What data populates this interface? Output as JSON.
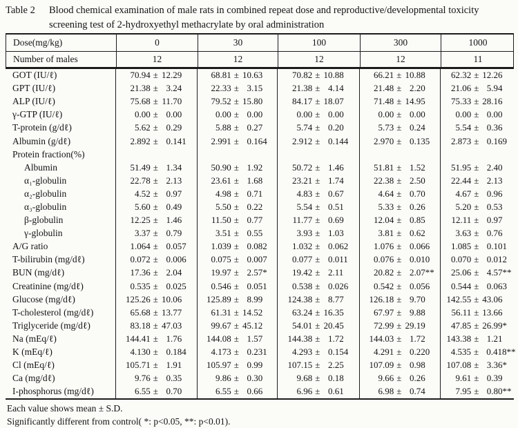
{
  "page": {
    "title_label": "Table 2",
    "caption_lines": [
      "Blood chemical examination of male rats in combined repeat dose and reproductive/developmental toxicity",
      "screening test of 2-hydroxyethyl methacrylate by oral administration"
    ],
    "footnotes": [
      "Each value shows mean ± S.D.",
      "Significantly different from control( *: p<0.05, **: p<0.01)."
    ]
  },
  "table": {
    "header_row_label": "Dose(mg/kg)",
    "doses": [
      "0",
      "30",
      "100",
      "300",
      "1000"
    ],
    "males_row_label": "Number of males",
    "males": [
      "12",
      "12",
      "12",
      "12",
      "11"
    ],
    "plus_minus": "±",
    "rows": [
      {
        "label": "GOT (IU/ℓ)",
        "indent": false,
        "values": [
          {
            "mean": "70.94",
            "sd": "12.29",
            "sig": ""
          },
          {
            "mean": "68.81",
            "sd": "10.63",
            "sig": ""
          },
          {
            "mean": "70.82",
            "sd": "10.88",
            "sig": ""
          },
          {
            "mean": "66.21",
            "sd": "10.88",
            "sig": ""
          },
          {
            "mean": "62.32",
            "sd": "12.26",
            "sig": ""
          }
        ]
      },
      {
        "label": "GPT (IU/ℓ)",
        "indent": false,
        "values": [
          {
            "mean": "21.38",
            "sd": "3.24",
            "sig": ""
          },
          {
            "mean": "22.33",
            "sd": "3.15",
            "sig": ""
          },
          {
            "mean": "21.38",
            "sd": "4.14",
            "sig": ""
          },
          {
            "mean": "21.48",
            "sd": "2.20",
            "sig": ""
          },
          {
            "mean": "21.06",
            "sd": "5.94",
            "sig": ""
          }
        ]
      },
      {
        "label": "ALP (IU/ℓ)",
        "indent": false,
        "values": [
          {
            "mean": "75.68",
            "sd": "11.70",
            "sig": ""
          },
          {
            "mean": "79.52",
            "sd": "15.80",
            "sig": ""
          },
          {
            "mean": "84.17",
            "sd": "18.07",
            "sig": ""
          },
          {
            "mean": "71.48",
            "sd": "14.95",
            "sig": ""
          },
          {
            "mean": "75.33",
            "sd": "28.16",
            "sig": ""
          }
        ]
      },
      {
        "label": "γ-GTP (IU/ℓ)",
        "indent": false,
        "values": [
          {
            "mean": "0.00",
            "sd": "0.00",
            "sig": ""
          },
          {
            "mean": "0.00",
            "sd": "0.00",
            "sig": ""
          },
          {
            "mean": "0.00",
            "sd": "0.00",
            "sig": ""
          },
          {
            "mean": "0.00",
            "sd": "0.00",
            "sig": ""
          },
          {
            "mean": "0.00",
            "sd": "0.00",
            "sig": ""
          }
        ]
      },
      {
        "label": "T-protein (g/dℓ)",
        "indent": false,
        "values": [
          {
            "mean": "5.62",
            "sd": "0.29",
            "sig": ""
          },
          {
            "mean": "5.88",
            "sd": "0.27",
            "sig": ""
          },
          {
            "mean": "5.74",
            "sd": "0.20",
            "sig": ""
          },
          {
            "mean": "5.73",
            "sd": "0.24",
            "sig": ""
          },
          {
            "mean": "5.54",
            "sd": "0.36",
            "sig": ""
          }
        ]
      },
      {
        "label": "Albumin (g/dℓ)",
        "indent": false,
        "values": [
          {
            "mean": "2.892",
            "sd": "0.141",
            "sig": ""
          },
          {
            "mean": "2.991",
            "sd": "0.164",
            "sig": ""
          },
          {
            "mean": "2.912",
            "sd": "0.144",
            "sig": ""
          },
          {
            "mean": "2.970",
            "sd": "0.135",
            "sig": ""
          },
          {
            "mean": "2.873",
            "sd": "0.169",
            "sig": ""
          }
        ]
      },
      {
        "label": "Protein fraction(%)",
        "indent": false,
        "values": []
      },
      {
        "label": "Albumin",
        "indent": true,
        "values": [
          {
            "mean": "51.49",
            "sd": "1.34",
            "sig": ""
          },
          {
            "mean": "50.90",
            "sd": "1.92",
            "sig": ""
          },
          {
            "mean": "50.72",
            "sd": "1.46",
            "sig": ""
          },
          {
            "mean": "51.81",
            "sd": "1.52",
            "sig": ""
          },
          {
            "mean": "51.95",
            "sd": "2.40",
            "sig": ""
          }
        ]
      },
      {
        "label": "α₁-globulin",
        "indent": true,
        "values": [
          {
            "mean": "22.78",
            "sd": "2.13",
            "sig": ""
          },
          {
            "mean": "23.61",
            "sd": "1.68",
            "sig": ""
          },
          {
            "mean": "23.21",
            "sd": "1.74",
            "sig": ""
          },
          {
            "mean": "22.38",
            "sd": "2.50",
            "sig": ""
          },
          {
            "mean": "22.44",
            "sd": "2.13",
            "sig": ""
          }
        ]
      },
      {
        "label": "α₂-globulin",
        "indent": true,
        "values": [
          {
            "mean": "4.52",
            "sd": "0.97",
            "sig": ""
          },
          {
            "mean": "4.98",
            "sd": "0.71",
            "sig": ""
          },
          {
            "mean": "4.83",
            "sd": "0.67",
            "sig": ""
          },
          {
            "mean": "4.64",
            "sd": "0.70",
            "sig": ""
          },
          {
            "mean": "4.67",
            "sd": "0.96",
            "sig": ""
          }
        ]
      },
      {
        "label": "α₃-globulin",
        "indent": true,
        "values": [
          {
            "mean": "5.60",
            "sd": "0.49",
            "sig": ""
          },
          {
            "mean": "5.50",
            "sd": "0.22",
            "sig": ""
          },
          {
            "mean": "5.54",
            "sd": "0.51",
            "sig": ""
          },
          {
            "mean": "5.33",
            "sd": "0.26",
            "sig": ""
          },
          {
            "mean": "5.20",
            "sd": "0.53",
            "sig": ""
          }
        ]
      },
      {
        "label": "β-globulin",
        "indent": true,
        "values": [
          {
            "mean": "12.25",
            "sd": "1.46",
            "sig": ""
          },
          {
            "mean": "11.50",
            "sd": "0.77",
            "sig": ""
          },
          {
            "mean": "11.77",
            "sd": "0.69",
            "sig": ""
          },
          {
            "mean": "12.04",
            "sd": "0.85",
            "sig": ""
          },
          {
            "mean": "12.11",
            "sd": "0.97",
            "sig": ""
          }
        ]
      },
      {
        "label": "γ-globulin",
        "indent": true,
        "values": [
          {
            "mean": "3.37",
            "sd": "0.79",
            "sig": ""
          },
          {
            "mean": "3.51",
            "sd": "0.55",
            "sig": ""
          },
          {
            "mean": "3.93",
            "sd": "1.03",
            "sig": ""
          },
          {
            "mean": "3.81",
            "sd": "0.62",
            "sig": ""
          },
          {
            "mean": "3.63",
            "sd": "0.76",
            "sig": ""
          }
        ]
      },
      {
        "label": "A/G ratio",
        "indent": false,
        "values": [
          {
            "mean": "1.064",
            "sd": "0.057",
            "sig": ""
          },
          {
            "mean": "1.039",
            "sd": "0.082",
            "sig": ""
          },
          {
            "mean": "1.032",
            "sd": "0.062",
            "sig": ""
          },
          {
            "mean": "1.076",
            "sd": "0.066",
            "sig": ""
          },
          {
            "mean": "1.085",
            "sd": "0.101",
            "sig": ""
          }
        ]
      },
      {
        "label": "T-bilirubin (mg/dℓ)",
        "indent": false,
        "values": [
          {
            "mean": "0.072",
            "sd": "0.006",
            "sig": ""
          },
          {
            "mean": "0.075",
            "sd": "0.007",
            "sig": ""
          },
          {
            "mean": "0.077",
            "sd": "0.011",
            "sig": ""
          },
          {
            "mean": "0.076",
            "sd": "0.010",
            "sig": ""
          },
          {
            "mean": "0.070",
            "sd": "0.012",
            "sig": ""
          }
        ]
      },
      {
        "label": "BUN (mg/dℓ)",
        "indent": false,
        "values": [
          {
            "mean": "17.36",
            "sd": "2.04",
            "sig": ""
          },
          {
            "mean": "19.97",
            "sd": "2.57",
            "sig": "*"
          },
          {
            "mean": "19.42",
            "sd": "2.11",
            "sig": ""
          },
          {
            "mean": "20.82",
            "sd": "2.07",
            "sig": "**"
          },
          {
            "mean": "25.06",
            "sd": "4.57",
            "sig": "**"
          }
        ]
      },
      {
        "label": "Creatinine (mg/dℓ)",
        "indent": false,
        "values": [
          {
            "mean": "0.535",
            "sd": "0.025",
            "sig": ""
          },
          {
            "mean": "0.546",
            "sd": "0.051",
            "sig": ""
          },
          {
            "mean": "0.538",
            "sd": "0.026",
            "sig": ""
          },
          {
            "mean": "0.542",
            "sd": "0.056",
            "sig": ""
          },
          {
            "mean": "0.544",
            "sd": "0.063",
            "sig": ""
          }
        ]
      },
      {
        "label": "Glucose (mg/dℓ)",
        "indent": false,
        "values": [
          {
            "mean": "125.26",
            "sd": "10.06",
            "sig": ""
          },
          {
            "mean": "125.89",
            "sd": "8.99",
            "sig": ""
          },
          {
            "mean": "124.38",
            "sd": "8.77",
            "sig": ""
          },
          {
            "mean": "126.18",
            "sd": "9.70",
            "sig": ""
          },
          {
            "mean": "142.55",
            "sd": "43.06",
            "sig": ""
          }
        ]
      },
      {
        "label": "T-cholesterol (mg/dℓ)",
        "indent": false,
        "values": [
          {
            "mean": "65.68",
            "sd": "13.77",
            "sig": ""
          },
          {
            "mean": "61.31",
            "sd": "14.52",
            "sig": ""
          },
          {
            "mean": "63.24",
            "sd": "16.35",
            "sig": ""
          },
          {
            "mean": "67.97",
            "sd": "9.88",
            "sig": ""
          },
          {
            "mean": "56.11",
            "sd": "13.66",
            "sig": ""
          }
        ]
      },
      {
        "label": "Triglyceride (mg/dℓ)",
        "indent": false,
        "values": [
          {
            "mean": "83.18",
            "sd": "47.03",
            "sig": ""
          },
          {
            "mean": "99.67",
            "sd": "45.12",
            "sig": ""
          },
          {
            "mean": "54.01",
            "sd": "20.45",
            "sig": ""
          },
          {
            "mean": "72.99",
            "sd": "29.19",
            "sig": ""
          },
          {
            "mean": "47.85",
            "sd": "26.99",
            "sig": "*"
          }
        ]
      },
      {
        "label": "Na (mEq/ℓ)",
        "indent": false,
        "values": [
          {
            "mean": "144.41",
            "sd": "1.76",
            "sig": ""
          },
          {
            "mean": "144.08",
            "sd": "1.57",
            "sig": ""
          },
          {
            "mean": "144.38",
            "sd": "1.72",
            "sig": ""
          },
          {
            "mean": "144.03",
            "sd": "1.72",
            "sig": ""
          },
          {
            "mean": "143.38",
            "sd": "1.21",
            "sig": ""
          }
        ]
      },
      {
        "label": "K (mEq/ℓ)",
        "indent": false,
        "values": [
          {
            "mean": "4.130",
            "sd": "0.184",
            "sig": ""
          },
          {
            "mean": "4.173",
            "sd": "0.231",
            "sig": ""
          },
          {
            "mean": "4.293",
            "sd": "0.154",
            "sig": ""
          },
          {
            "mean": "4.291",
            "sd": "0.220",
            "sig": ""
          },
          {
            "mean": "4.535",
            "sd": "0.418",
            "sig": "**"
          }
        ]
      },
      {
        "label": "Cl (mEq/ℓ)",
        "indent": false,
        "values": [
          {
            "mean": "105.71",
            "sd": "1.91",
            "sig": ""
          },
          {
            "mean": "105.97",
            "sd": "0.99",
            "sig": ""
          },
          {
            "mean": "107.15",
            "sd": "2.25",
            "sig": ""
          },
          {
            "mean": "107.09",
            "sd": "0.98",
            "sig": ""
          },
          {
            "mean": "107.08",
            "sd": "3.36",
            "sig": "*"
          }
        ]
      },
      {
        "label": "Ca (mg/dℓ)",
        "indent": false,
        "values": [
          {
            "mean": "9.76",
            "sd": "0.35",
            "sig": ""
          },
          {
            "mean": "9.86",
            "sd": "0.30",
            "sig": ""
          },
          {
            "mean": "9.68",
            "sd": "0.18",
            "sig": ""
          },
          {
            "mean": "9.66",
            "sd": "0.26",
            "sig": ""
          },
          {
            "mean": "9.61",
            "sd": "0.39",
            "sig": ""
          }
        ]
      },
      {
        "label": "I-phosphorus (mg/dℓ)",
        "indent": false,
        "values": [
          {
            "mean": "6.55",
            "sd": "0.70",
            "sig": ""
          },
          {
            "mean": "6.55",
            "sd": "0.66",
            "sig": ""
          },
          {
            "mean": "6.96",
            "sd": "0.61",
            "sig": ""
          },
          {
            "mean": "6.98",
            "sd": "0.74",
            "sig": ""
          },
          {
            "mean": "7.95",
            "sd": "0.80",
            "sig": "**"
          }
        ]
      }
    ]
  }
}
